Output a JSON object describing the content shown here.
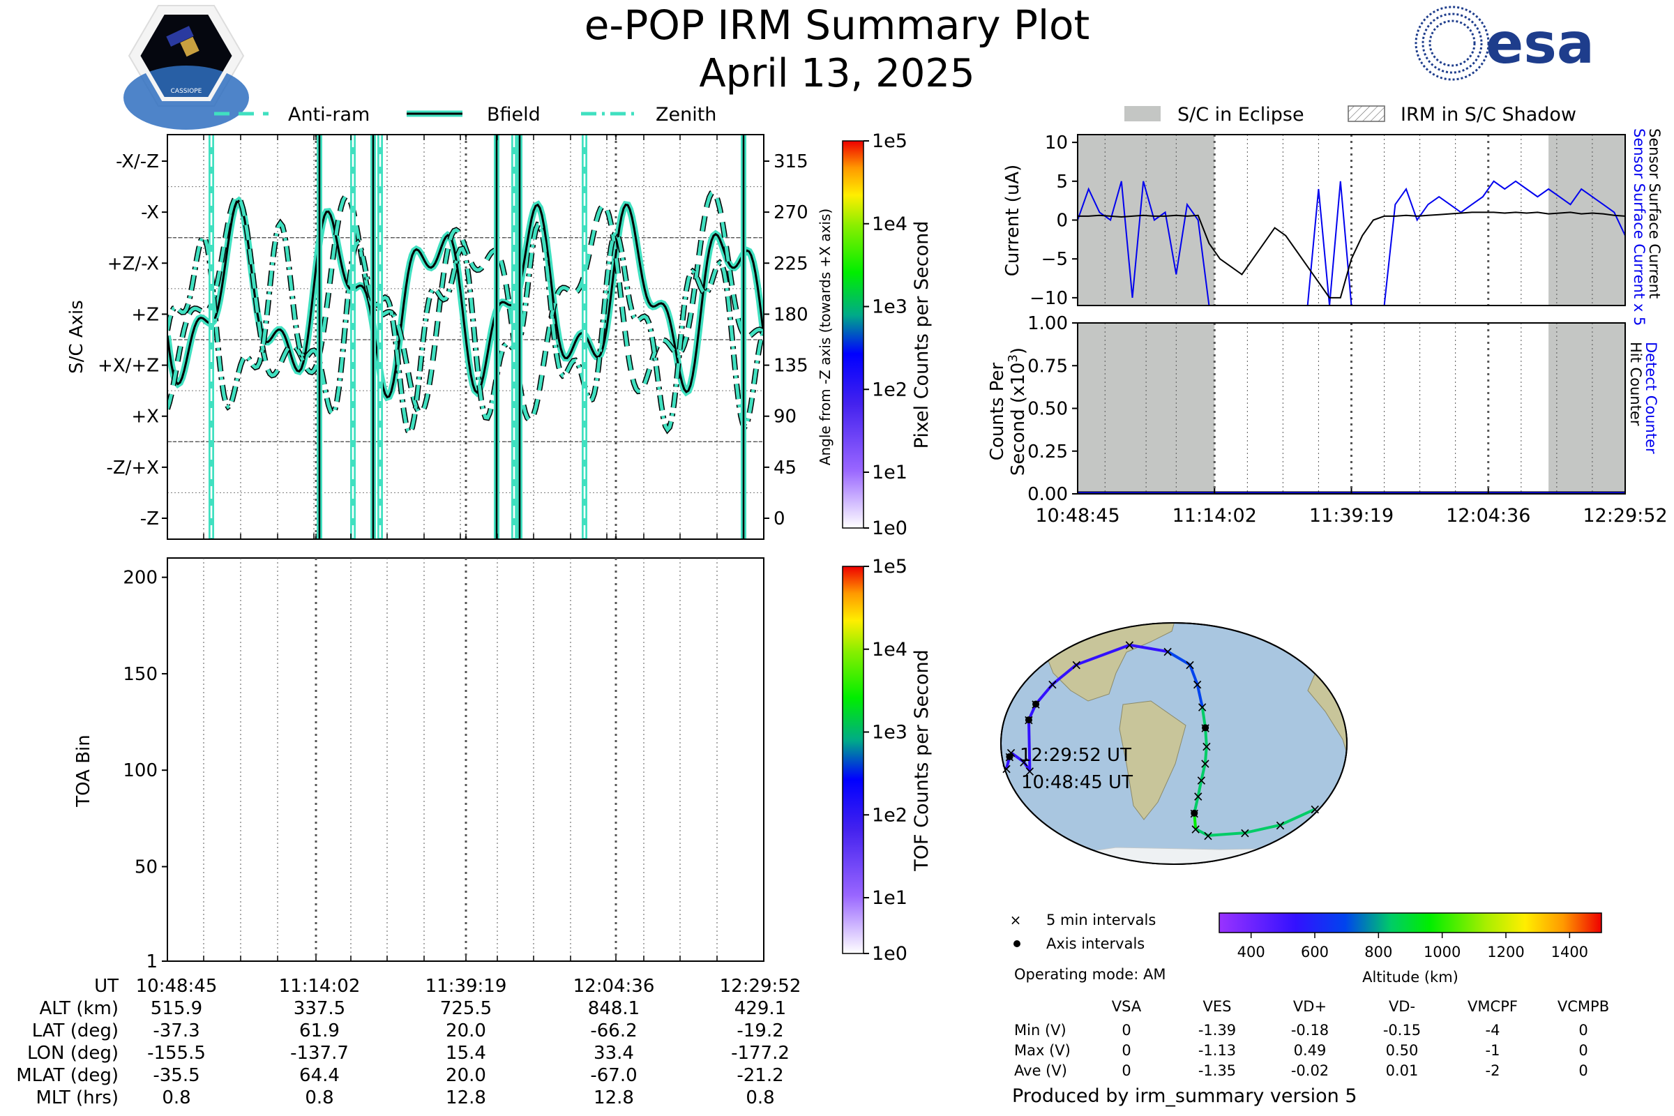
{
  "title": "e-POP IRM Summary Plot",
  "date": "April 13, 2025",
  "esa_logo_text": "esa",
  "cassiope_logo_text": "CASSIOPE",
  "colors": {
    "teal": "#40e0c0",
    "eclipse_gray": "#c4c6c4",
    "blue_series": "#0000ee",
    "black_series": "#000000"
  },
  "attitude_panel": {
    "legend": [
      "Anti-ram",
      "Bfield",
      "Zenith"
    ],
    "left_ticks": [
      "-X/-Z",
      "-X",
      "+Z/-X",
      "+Z",
      "+X/+Z",
      "+X",
      "-Z/+X",
      "-Z"
    ],
    "right_ticks": [
      "315",
      "270",
      "225",
      "180",
      "135",
      "90",
      "45",
      "0"
    ],
    "ylabel": "S/C Axis",
    "ylabel_right": "Angle from -Z axis (towards +X axis)",
    "colorbar_label": "Pixel Counts per Second",
    "colorbar_ticks": [
      "1e5",
      "1e4",
      "1e3",
      "1e2",
      "1e1",
      "1e0"
    ]
  },
  "toa_panel": {
    "ylabel": "TOA Bin",
    "yticks": [
      "200",
      "150",
      "100",
      "50",
      "1"
    ],
    "ylim": [
      1,
      210
    ],
    "colorbar_label": "TOF Counts per Second",
    "colorbar_ticks": [
      "1e5",
      "1e4",
      "1e3",
      "1e2",
      "1e1",
      "1e0"
    ]
  },
  "bottom_table": {
    "row_labels": [
      "UT",
      "ALT (km)",
      "LAT (deg)",
      "LON (deg)",
      "MLAT (deg)",
      "MLT (hrs)"
    ],
    "columns": [
      [
        "10:48:45",
        "515.9",
        "-37.3",
        "-155.5",
        "-35.5",
        "0.8"
      ],
      [
        "11:14:02",
        "337.5",
        "61.9",
        "-137.7",
        "64.4",
        "0.8"
      ],
      [
        "11:39:19",
        "725.5",
        "20.0",
        "15.4",
        "20.0",
        "12.8"
      ],
      [
        "12:04:36",
        "848.1",
        "-66.2",
        "33.4",
        "-67.0",
        "12.8"
      ],
      [
        "12:29:52",
        "429.1",
        "-19.2",
        "-177.2",
        "-21.2",
        "0.8"
      ]
    ]
  },
  "current_panel": {
    "legend": [
      "S/C in Eclipse",
      "IRM in S/C Shadow"
    ],
    "ylabel": "Current (uA)",
    "yticks": [
      "10",
      "5",
      "0",
      "−5",
      "−10"
    ],
    "right_label_blue": "Sensor Surface Current x 5",
    "right_label_black": "Sensor Surface Current"
  },
  "counts_panel": {
    "ylabel_line1": "Counts Per",
    "ylabel_line2": "Second (x10",
    "ylabel_sup": "3",
    "ylabel_close": ")",
    "yticks": [
      "1.00",
      "0.75",
      "0.50",
      "0.25",
      "0.00"
    ],
    "right_label_blue": "Detect Counter",
    "right_label_black": "Hit Counter",
    "xticks": [
      "10:48:45",
      "11:14:02",
      "11:39:19",
      "12:04:36",
      "12:29:52"
    ]
  },
  "map_panel": {
    "start_label": "10:48:45 UT",
    "end_label": "12:29:52 UT",
    "legend": [
      "5 min intervals",
      "Axis intervals"
    ],
    "operating_mode": "Operating mode: AM",
    "altitude_label": "Altitude (km)",
    "altitude_ticks": [
      "400",
      "600",
      "800",
      "1000",
      "1200",
      "1400"
    ]
  },
  "voltage_table": {
    "headers": [
      "VSA",
      "VES",
      "VD+",
      "VD-",
      "VMCPF",
      "VCMPB"
    ],
    "rows": [
      {
        "label": "Min (V)",
        "values": [
          "0",
          "-1.39",
          "-0.18",
          "-0.15",
          "-4",
          "0"
        ]
      },
      {
        "label": "Max (V)",
        "values": [
          "0",
          "-1.13",
          "0.49",
          "0.50",
          "-1",
          "0"
        ]
      },
      {
        "label": "Ave (V)",
        "values": [
          "0",
          "-1.35",
          "-0.02",
          "0.01",
          "-2",
          "0"
        ]
      }
    ]
  },
  "footer": "Produced by irm_summary version 5",
  "chart_data": [
    {
      "type": "line",
      "panel": "attitude",
      "xlim": [
        "10:48:45",
        "12:29:52"
      ],
      "ylim": [
        0,
        360
      ],
      "ylabel": "Angle from -Z axis (towards +X axis)",
      "series": [
        {
          "name": "Anti-ram",
          "style": "dashed"
        },
        {
          "name": "Bfield",
          "style": "solid"
        },
        {
          "name": "Zenith",
          "style": "dash-dot"
        }
      ]
    },
    {
      "type": "line",
      "panel": "current",
      "xlim": [
        "10:48:45",
        "12:29:52"
      ],
      "ylim": [
        -11,
        11
      ],
      "ylabel": "Current (uA)",
      "eclipse_intervals": [
        [
          "10:48:45",
          "11:14:02"
        ],
        [
          "12:15:00",
          "12:29:52"
        ]
      ],
      "series": [
        {
          "name": "Sensor Surface Current x 5",
          "color": "#0000ee",
          "x": [
            0,
            2,
            4,
            6,
            8,
            10,
            12,
            14,
            16,
            18,
            20,
            22,
            24,
            26,
            28,
            30,
            32,
            34,
            36,
            38,
            40,
            42,
            44,
            46,
            48,
            50,
            52,
            54,
            56,
            58,
            60,
            62,
            64,
            66,
            68,
            70,
            72,
            74,
            76,
            78,
            80,
            82,
            84,
            86,
            88,
            90,
            92,
            94,
            96,
            98,
            100
          ],
          "y": [
            0,
            4,
            1,
            0,
            5,
            -10,
            5,
            0,
            1,
            -7,
            2,
            0,
            -11,
            -11,
            -11,
            -11,
            -11,
            -11,
            -11,
            -11,
            -11,
            -11,
            4,
            -11,
            5,
            -11,
            -11,
            -11,
            -11,
            2,
            4,
            0,
            2,
            3,
            2,
            1,
            2,
            3,
            5,
            4,
            5,
            4,
            3,
            4,
            3,
            2,
            4,
            3,
            2,
            1,
            -2
          ]
        },
        {
          "name": "Sensor Surface Current",
          "color": "#000000",
          "x": [
            0,
            2,
            4,
            6,
            8,
            10,
            12,
            14,
            16,
            18,
            20,
            22,
            24,
            26,
            28,
            30,
            32,
            34,
            36,
            38,
            40,
            42,
            44,
            46,
            48,
            50,
            52,
            54,
            56,
            58,
            60,
            62,
            64,
            66,
            68,
            70,
            72,
            74,
            76,
            78,
            80,
            82,
            84,
            86,
            88,
            90,
            92,
            94,
            96,
            98,
            100
          ],
          "y": [
            0.5,
            0.5,
            0.6,
            0.5,
            0.4,
            0.5,
            0.6,
            0.5,
            0.5,
            0.6,
            0.5,
            0.6,
            -3,
            -5,
            -6,
            -7,
            -5,
            -3,
            -1,
            -2,
            -4,
            -6,
            -8,
            -10,
            -10,
            -5,
            -2,
            0,
            0.5,
            0.5,
            0.6,
            0.5,
            0.6,
            0.7,
            0.8,
            0.9,
            1,
            1,
            1,
            0.9,
            1,
            0.9,
            1,
            0.8,
            0.9,
            1,
            0.8,
            0.9,
            0.8,
            0.6,
            0.5
          ]
        }
      ]
    },
    {
      "type": "line",
      "panel": "counts",
      "ylim": [
        0,
        1
      ],
      "ylabel": "Counts Per Second (x10^3)",
      "series": [
        {
          "name": "Detect Counter",
          "color": "#0000ee",
          "y": [
            0,
            0,
            0,
            0,
            0
          ]
        },
        {
          "name": "Hit Counter",
          "color": "#000000",
          "y": [
            0,
            0,
            0,
            0,
            0
          ]
        }
      ]
    },
    {
      "type": "scatter",
      "panel": "map",
      "xlabel": "Longitude",
      "ylabel": "Latitude",
      "track": {
        "lon": [
          -170,
          -158,
          -154,
          -154,
          -152,
          -145,
          -134,
          -80,
          -10,
          22,
          28,
          31,
          33,
          34,
          33,
          30,
          28,
          26,
          32,
          55,
          110,
          150,
          175,
          -178,
          -172
        ],
        "lat": [
          -7,
          -14,
          -21,
          18,
          30,
          45,
          60,
          75,
          70,
          60,
          45,
          28,
          12,
          -2,
          -15,
          -28,
          -40,
          -53,
          -65,
          -70,
          -68,
          -62,
          -50,
          -19,
          -10
        ],
        "altitude_km": [
          380,
          360,
          350,
          370,
          400,
          450,
          500,
          540,
          590,
          640,
          690,
          740,
          780,
          800,
          820,
          830,
          840,
          848,
          840,
          830,
          800,
          720,
          600,
          440,
          429
        ]
      }
    }
  ]
}
